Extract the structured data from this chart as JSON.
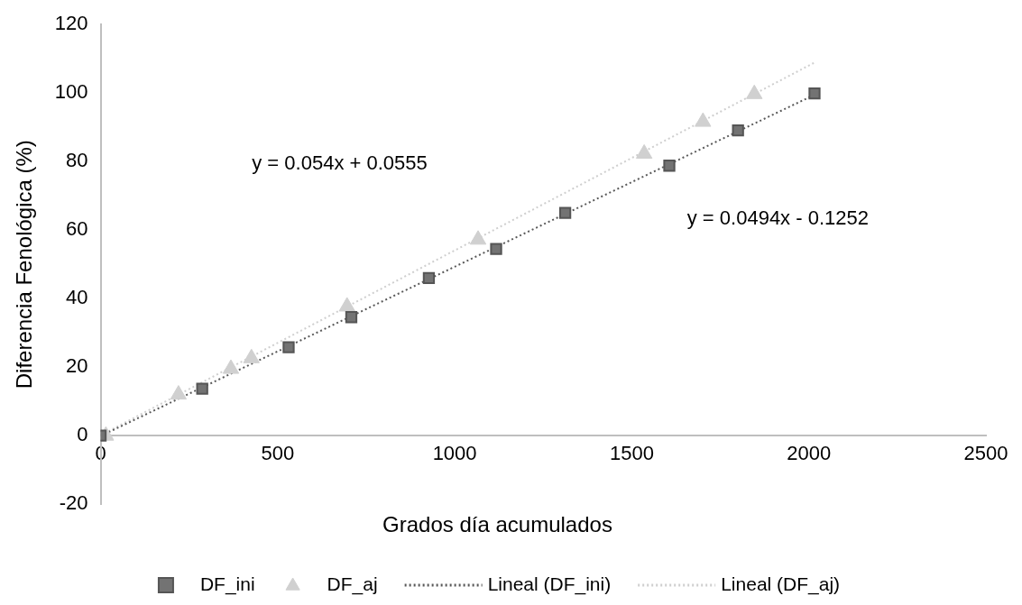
{
  "chart_data": {
    "type": "scatter",
    "xlabel": "Grados día acumulados",
    "ylabel": "Diferencia Fenológica (%)",
    "xlim": [
      0,
      2500
    ],
    "xticks": [
      0,
      500,
      1000,
      1500,
      2000,
      2500
    ],
    "ylim": [
      -20,
      120
    ],
    "yticks": [
      -20,
      0,
      20,
      40,
      60,
      80,
      100,
      120
    ],
    "grid": false,
    "legend": "bottom",
    "series": [
      {
        "name": "DF_ini",
        "type": "scatter",
        "marker": "square",
        "color": "#737373",
        "x": [
          0,
          287,
          531,
          708,
          927,
          1117,
          1312,
          1606,
          1800,
          2016
        ],
        "values": [
          0,
          13.7,
          25.8,
          34.6,
          46,
          54.5,
          65,
          78.8,
          89.1,
          99.9
        ]
      },
      {
        "name": "DF_aj",
        "type": "scatter",
        "marker": "triangle",
        "color": "#d0d0d0",
        "x": [
          15,
          220,
          368,
          426,
          696,
          1066,
          1535,
          1701,
          1846
        ],
        "values": [
          0,
          12,
          19.5,
          22.6,
          37.7,
          57.2,
          82.3,
          91.6,
          99.7
        ]
      },
      {
        "name": "Lineal (DF_ini)",
        "type": "line",
        "marker": "none",
        "line_style": "dotted",
        "color": "#595959",
        "x": [
          0,
          2016
        ],
        "values": [
          -0.1,
          99.5
        ]
      },
      {
        "name": "Lineal (DF_aj)",
        "type": "line",
        "marker": "none",
        "line_style": "dotted",
        "color": "#cfcfcf",
        "x": [
          0,
          2016
        ],
        "values": [
          0.1,
          108.9
        ]
      }
    ],
    "annotations": [
      "y = 0.054x + 0.0555",
      "y = 0.0494x - 0.1252"
    ]
  }
}
